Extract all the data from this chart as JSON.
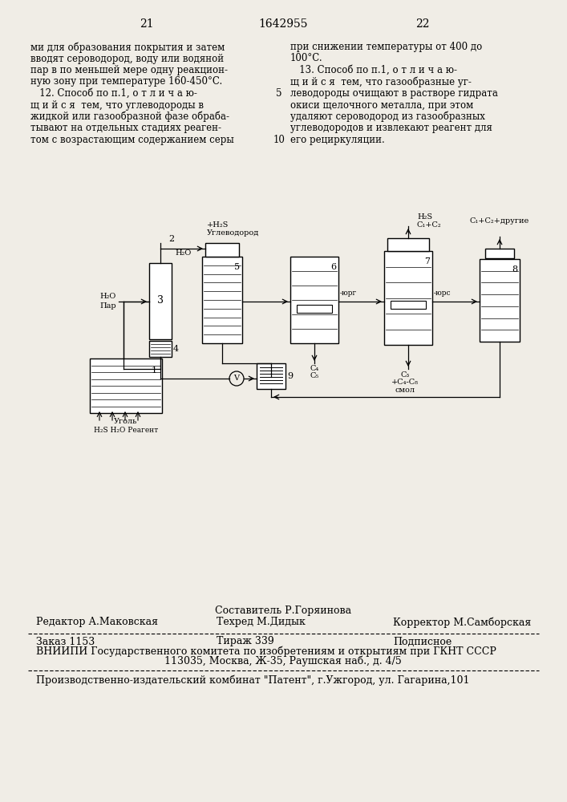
{
  "bg_color": "#f0ede6",
  "page_num_left": "21",
  "page_num_center": "1642955",
  "page_num_right": "22",
  "text_col1": [
    "ми для образования покрытия и затем",
    "вводят сероводород, воду или водяной",
    "пар в по меньшей мере одну реакцион-",
    "ную зону при температуре 160-450°C.",
    "   12. Способ по п.1, о т л и ч а ю-",
    "щ и й с я  тем, что углеводороды в",
    "жидкой или газообразной фазе обраба-",
    "тывают на отдельных стадиях реаген-",
    "том с возрастающим содержанием серы"
  ],
  "text_col2": [
    "при снижении температуры от 400 до",
    "100°C.",
    "   13. Способ по п.1, о т л и ч а ю-",
    "щ и й с я  тем, что газообразные уг-",
    "леводороды очищают в растворе гидрата",
    "окиси щелочного металла, при этом",
    "удаляют сероводород из газообразных",
    "углеводородов и извлекают реагент для",
    "его рециркуляции."
  ],
  "ln5": "5",
  "ln10": "10",
  "footer_compiler": "Составитель Р.Горяинова",
  "footer_editor": "Редактор А.Маковская",
  "footer_tech": "Техред М.Дидык",
  "footer_corr": "Корректор М.Самборская",
  "footer_order": "Заказ 1153",
  "footer_tirazh": "Тираж 339",
  "footer_podp": "Подписное",
  "footer_vniip": "ВНИИПИ Государственного комитета по изобретениям и открытиям при ГКНТ СССР",
  "footer_addr": "113035, Москва, Ж-35, Раушская наб., д. 4/5",
  "footer_prod": "Производственно-издательский комбинат \"Патент\", г.Ужгород, ул. Гагарина,101"
}
